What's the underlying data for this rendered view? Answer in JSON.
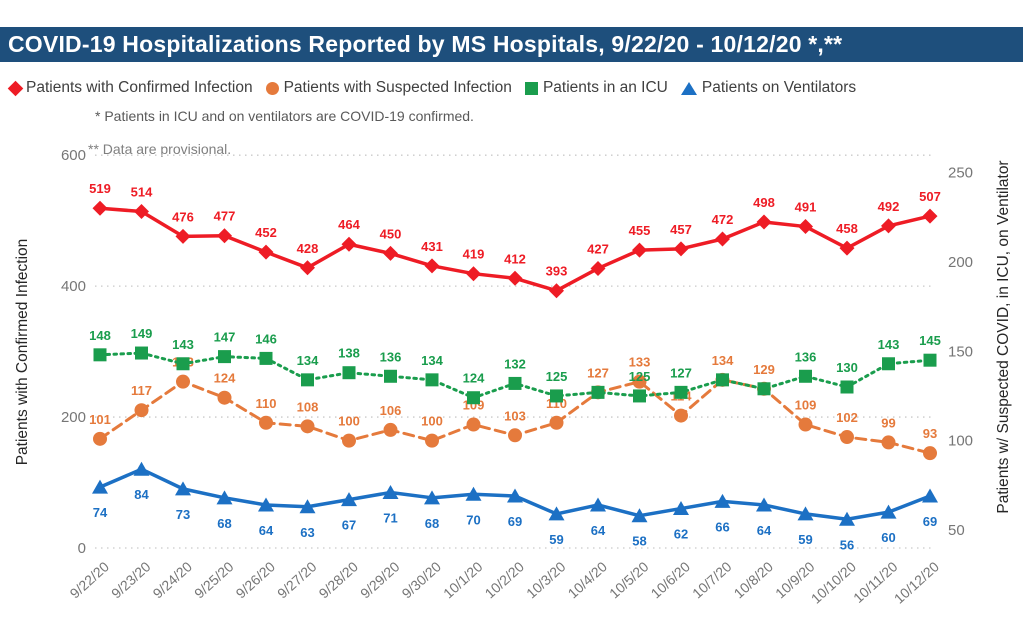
{
  "header": {
    "title": "COVID-19 Hospitalizations Reported by MS Hospitals, 9/22/20 - 10/12/20 *,**",
    "bar_color": "#1E4F7C"
  },
  "legend": {
    "position": "top",
    "items": [
      {
        "label": "Patients with Confirmed Infection",
        "color": "#EE1C25",
        "marker": "diamond"
      },
      {
        "label": "Patients with Suspected Infection",
        "color": "#E57A3C",
        "marker": "circle"
      },
      {
        "label": "Patients in an ICU",
        "color": "#1A9D4D",
        "marker": "square"
      },
      {
        "label": "Patients on Ventilators",
        "color": "#1C70C4",
        "marker": "triangle"
      }
    ]
  },
  "footnotes": {
    "note1": "* Patients in ICU and on ventilators are COVID-19 confirmed.",
    "note2": "** Data are provisional."
  },
  "chart_data": {
    "type": "line",
    "title": "COVID-19 Hospitalizations Reported by MS Hospitals, 9/22/20 - 10/12/20 *,**",
    "grid": "horizontal-dotted",
    "x": [
      "9/22/20",
      "9/23/20",
      "9/24/20",
      "9/25/20",
      "9/26/20",
      "9/27/20",
      "9/28/20",
      "9/29/20",
      "9/30/20",
      "10/1/20",
      "10/2/20",
      "10/3/20",
      "10/4/20",
      "10/5/20",
      "10/6/20",
      "10/7/20",
      "10/8/20",
      "10/9/20",
      "10/10/20",
      "10/11/20",
      "10/12/20"
    ],
    "left_axis": {
      "title": "Patients with Confirmed Infection",
      "ticks": [
        0,
        200,
        400,
        600
      ],
      "range": [
        0,
        600
      ]
    },
    "right_axis": {
      "title": "Patients w/ Suspected COVID, in ICU, on Ventilator",
      "ticks": [
        50,
        100,
        150,
        200,
        250
      ],
      "range": [
        50,
        250
      ]
    },
    "series": [
      {
        "name": "Patients with Confirmed Infection",
        "axis": "left",
        "color": "#EE1C25",
        "marker": "diamond",
        "line_style": "solid",
        "labels": "above",
        "values": [
          519,
          514,
          476,
          477,
          452,
          428,
          464,
          450,
          431,
          419,
          412,
          393,
          427,
          455,
          457,
          472,
          498,
          491,
          458,
          492,
          507
        ]
      },
      {
        "name": "Patients with Suspected Infection",
        "axis": "right",
        "color": "#E57A3C",
        "marker": "circle",
        "line_style": "dashed",
        "labels": "above",
        "covered_label_indices": [
          9,
          11,
          14
        ],
        "values": [
          101,
          117,
          133,
          124,
          110,
          108,
          100,
          106,
          100,
          109,
          103,
          110,
          127,
          133,
          114,
          134,
          129,
          109,
          102,
          99,
          93
        ]
      },
      {
        "name": "Patients in an ICU",
        "axis": "right",
        "color": "#1A9D4D",
        "marker": "square",
        "line_style": "dotted",
        "labels": "above",
        "hidden_label_indices": [
          12,
          15,
          16
        ],
        "values": [
          148,
          149,
          143,
          147,
          146,
          134,
          138,
          136,
          134,
          124,
          132,
          125,
          127,
          125,
          127,
          134,
          129,
          136,
          130,
          143,
          145
        ]
      },
      {
        "name": "Patients on Ventilators",
        "axis": "right",
        "color": "#1C70C4",
        "marker": "triangle",
        "line_style": "solid",
        "labels": "below",
        "values": [
          74,
          84,
          73,
          68,
          64,
          63,
          67,
          71,
          68,
          70,
          69,
          59,
          64,
          58,
          62,
          66,
          64,
          59,
          56,
          60,
          69
        ]
      }
    ]
  }
}
